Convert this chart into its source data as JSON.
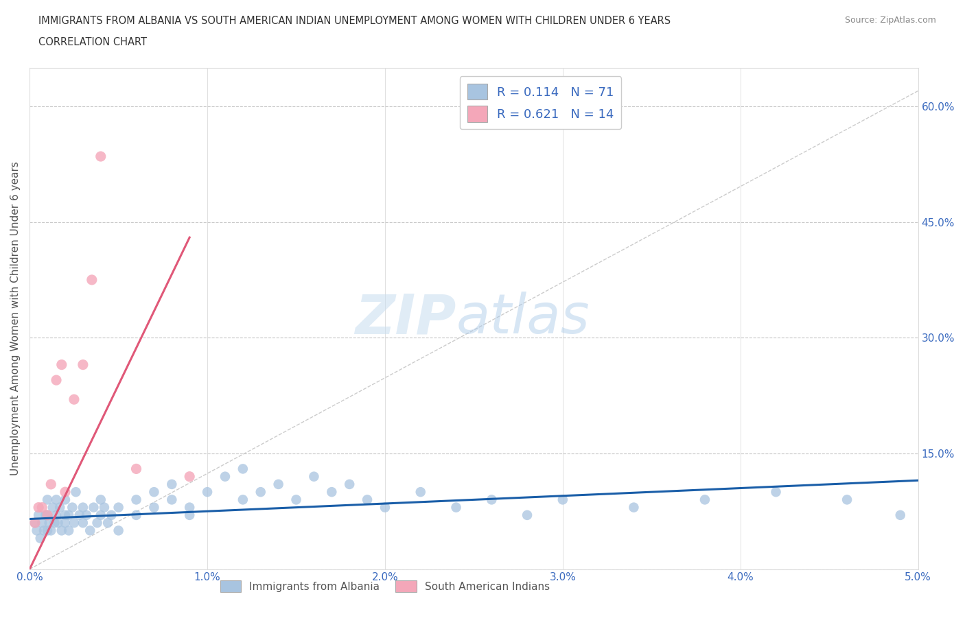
{
  "title_line1": "IMMIGRANTS FROM ALBANIA VS SOUTH AMERICAN INDIAN UNEMPLOYMENT AMONG WOMEN WITH CHILDREN UNDER 6 YEARS",
  "title_line2": "CORRELATION CHART",
  "source": "Source: ZipAtlas.com",
  "ylabel": "Unemployment Among Women with Children Under 6 years",
  "xlim": [
    0.0,
    0.05
  ],
  "ylim": [
    0.0,
    0.65
  ],
  "xticks": [
    0.0,
    0.01,
    0.02,
    0.03,
    0.04,
    0.05
  ],
  "xticklabels": [
    "0.0%",
    "1.0%",
    "2.0%",
    "3.0%",
    "4.0%",
    "5.0%"
  ],
  "yticks": [
    0.0,
    0.15,
    0.3,
    0.45,
    0.6
  ],
  "yticklabels_right": [
    "",
    "15.0%",
    "30.0%",
    "45.0%",
    "60.0%"
  ],
  "r_albania": 0.114,
  "n_albania": 71,
  "r_sam_indian": 0.621,
  "n_sam_indian": 14,
  "blue_color": "#a8c4e0",
  "pink_color": "#f4a7b9",
  "blue_line_color": "#1a5ea8",
  "pink_line_color": "#e05878",
  "grid_color": "#c8c8c8",
  "watermark_zip": "ZIP",
  "watermark_atlas": "atlas",
  "albania_scatter_x": [
    0.0003,
    0.0004,
    0.0005,
    0.0006,
    0.0007,
    0.0008,
    0.0009,
    0.001,
    0.001,
    0.001,
    0.0011,
    0.0012,
    0.0013,
    0.0014,
    0.0015,
    0.0015,
    0.0016,
    0.0017,
    0.0018,
    0.002,
    0.002,
    0.002,
    0.0022,
    0.0022,
    0.0024,
    0.0025,
    0.0026,
    0.0028,
    0.003,
    0.003,
    0.0032,
    0.0034,
    0.0036,
    0.0038,
    0.004,
    0.004,
    0.0042,
    0.0044,
    0.0046,
    0.005,
    0.005,
    0.006,
    0.006,
    0.007,
    0.007,
    0.008,
    0.008,
    0.009,
    0.009,
    0.01,
    0.011,
    0.012,
    0.012,
    0.013,
    0.014,
    0.015,
    0.016,
    0.017,
    0.018,
    0.019,
    0.02,
    0.022,
    0.024,
    0.026,
    0.028,
    0.03,
    0.034,
    0.038,
    0.042,
    0.046,
    0.049
  ],
  "albania_scatter_y": [
    0.06,
    0.05,
    0.07,
    0.04,
    0.06,
    0.05,
    0.07,
    0.05,
    0.07,
    0.09,
    0.06,
    0.05,
    0.08,
    0.06,
    0.07,
    0.09,
    0.06,
    0.08,
    0.05,
    0.07,
    0.06,
    0.09,
    0.07,
    0.05,
    0.08,
    0.06,
    0.1,
    0.07,
    0.06,
    0.08,
    0.07,
    0.05,
    0.08,
    0.06,
    0.09,
    0.07,
    0.08,
    0.06,
    0.07,
    0.05,
    0.08,
    0.09,
    0.07,
    0.1,
    0.08,
    0.09,
    0.11,
    0.08,
    0.07,
    0.1,
    0.12,
    0.09,
    0.13,
    0.1,
    0.11,
    0.09,
    0.12,
    0.1,
    0.11,
    0.09,
    0.08,
    0.1,
    0.08,
    0.09,
    0.07,
    0.09,
    0.08,
    0.09,
    0.1,
    0.09,
    0.07
  ],
  "sam_scatter_x": [
    0.0003,
    0.0005,
    0.0007,
    0.001,
    0.0012,
    0.0015,
    0.0018,
    0.002,
    0.0025,
    0.003,
    0.0035,
    0.004,
    0.006,
    0.009
  ],
  "sam_scatter_y": [
    0.06,
    0.08,
    0.08,
    0.07,
    0.11,
    0.245,
    0.265,
    0.1,
    0.22,
    0.265,
    0.375,
    0.535,
    0.13,
    0.12
  ],
  "blue_trend_x": [
    0.0,
    0.05
  ],
  "blue_trend_y": [
    0.065,
    0.115
  ],
  "pink_trend_x": [
    0.0,
    0.009
  ],
  "pink_trend_y": [
    0.0,
    0.43
  ]
}
